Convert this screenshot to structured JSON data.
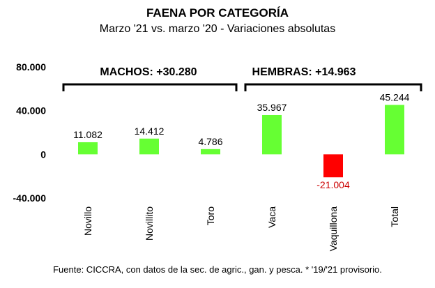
{
  "chart_data": {
    "type": "bar",
    "title": "FAENA POR CATEGORÍA",
    "subtitle": "Marzo '21 vs. marzo '20 - Variaciones absolutas",
    "categories": [
      "Novillo",
      "Novillito",
      "Toro",
      "Vaca",
      "Vaquillona",
      "Total"
    ],
    "values": [
      11082,
      14412,
      4786,
      35967,
      -21004,
      45244
    ],
    "value_labels": [
      "11.082",
      "14.412",
      "4.786",
      "35.967",
      "-21.004",
      "45.244"
    ],
    "yticks": [
      "80.000",
      "40.000",
      "0",
      "-40.000"
    ],
    "ytick_values": [
      80000,
      40000,
      0,
      -40000
    ],
    "ylim": [
      -40000,
      80000
    ],
    "groups": [
      {
        "label": "MACHOS: +30.280",
        "categories": [
          "Novillo",
          "Novillito",
          "Toro"
        ]
      },
      {
        "label": "HEMBRAS: +14.963",
        "categories": [
          "Vaca",
          "Vaquillona",
          "Total"
        ]
      }
    ],
    "colors": {
      "positive": "#66ff33",
      "negative": "#ff0000",
      "negative_label": "#cc0000"
    },
    "source": "Fuente: CICCRA, con datos de la sec. de agric., gan. y pesca. * '19/'21 provisorio."
  }
}
